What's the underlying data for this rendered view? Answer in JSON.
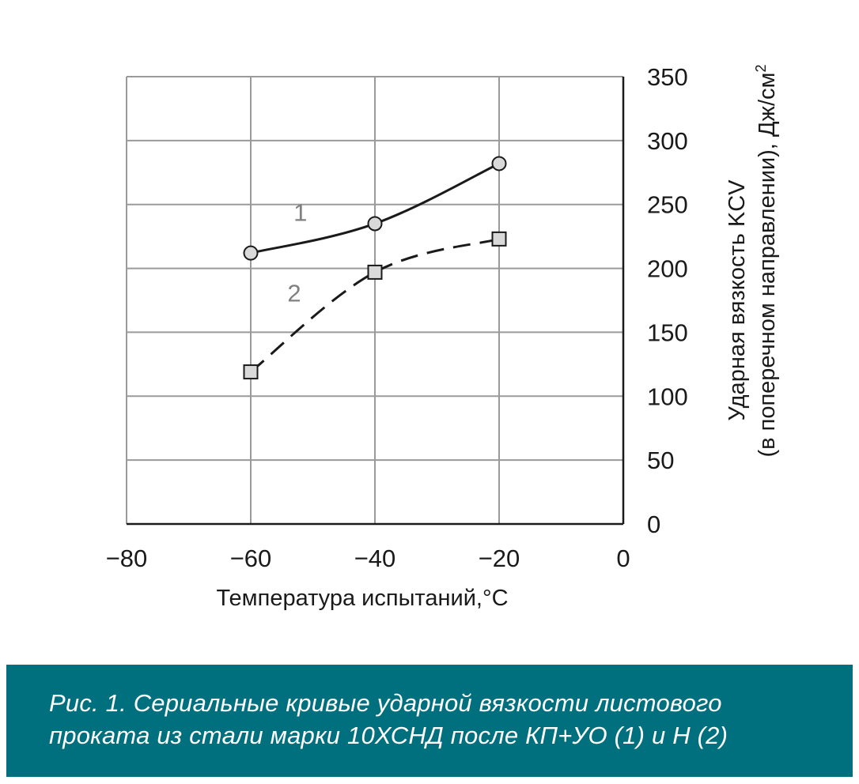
{
  "chart_data": {
    "type": "line",
    "xlabel": "Температура испытаний,°С",
    "ylabel_line1": "Ударная вязкость KCV",
    "ylabel_line2": "(в поперечном направлении), Дж/см",
    "ylabel_unit_sup": "2",
    "xlim": [
      -80,
      0
    ],
    "ylim": [
      0,
      350
    ],
    "x_ticks": [
      -80,
      -60,
      -40,
      -20,
      0
    ],
    "x_tick_labels": [
      "−80",
      "−60",
      "−40",
      "−20",
      "0"
    ],
    "y_ticks": [
      0,
      50,
      100,
      150,
      200,
      250,
      300,
      350
    ],
    "y_tick_labels": [
      "0",
      "50",
      "100",
      "150",
      "200",
      "250",
      "300",
      "350"
    ],
    "y_axis_side": "right",
    "grid": true,
    "series": [
      {
        "name": "1",
        "x": [
          -60,
          -40,
          -20
        ],
        "values": [
          212,
          235,
          282
        ],
        "line_style": "solid",
        "marker": "circle",
        "color": "#1a1a1a",
        "marker_fill": "#d9d9d9",
        "label_at": [
          -52,
          237
        ]
      },
      {
        "name": "2",
        "x": [
          -60,
          -40,
          -20
        ],
        "values": [
          119,
          197,
          223
        ],
        "line_style": "dashed",
        "marker": "square",
        "color": "#1a1a1a",
        "marker_fill": "#d9d9d9",
        "label_at": [
          -53,
          174
        ]
      }
    ]
  },
  "caption": {
    "line1": "Рис. 1. Сериальные кривые ударной вязкости листового",
    "line2": "проката из стали марки 10ХСНД после КП+УО (1) и Н (2)",
    "background": "#006f7e",
    "text_color": "#ffffff"
  }
}
